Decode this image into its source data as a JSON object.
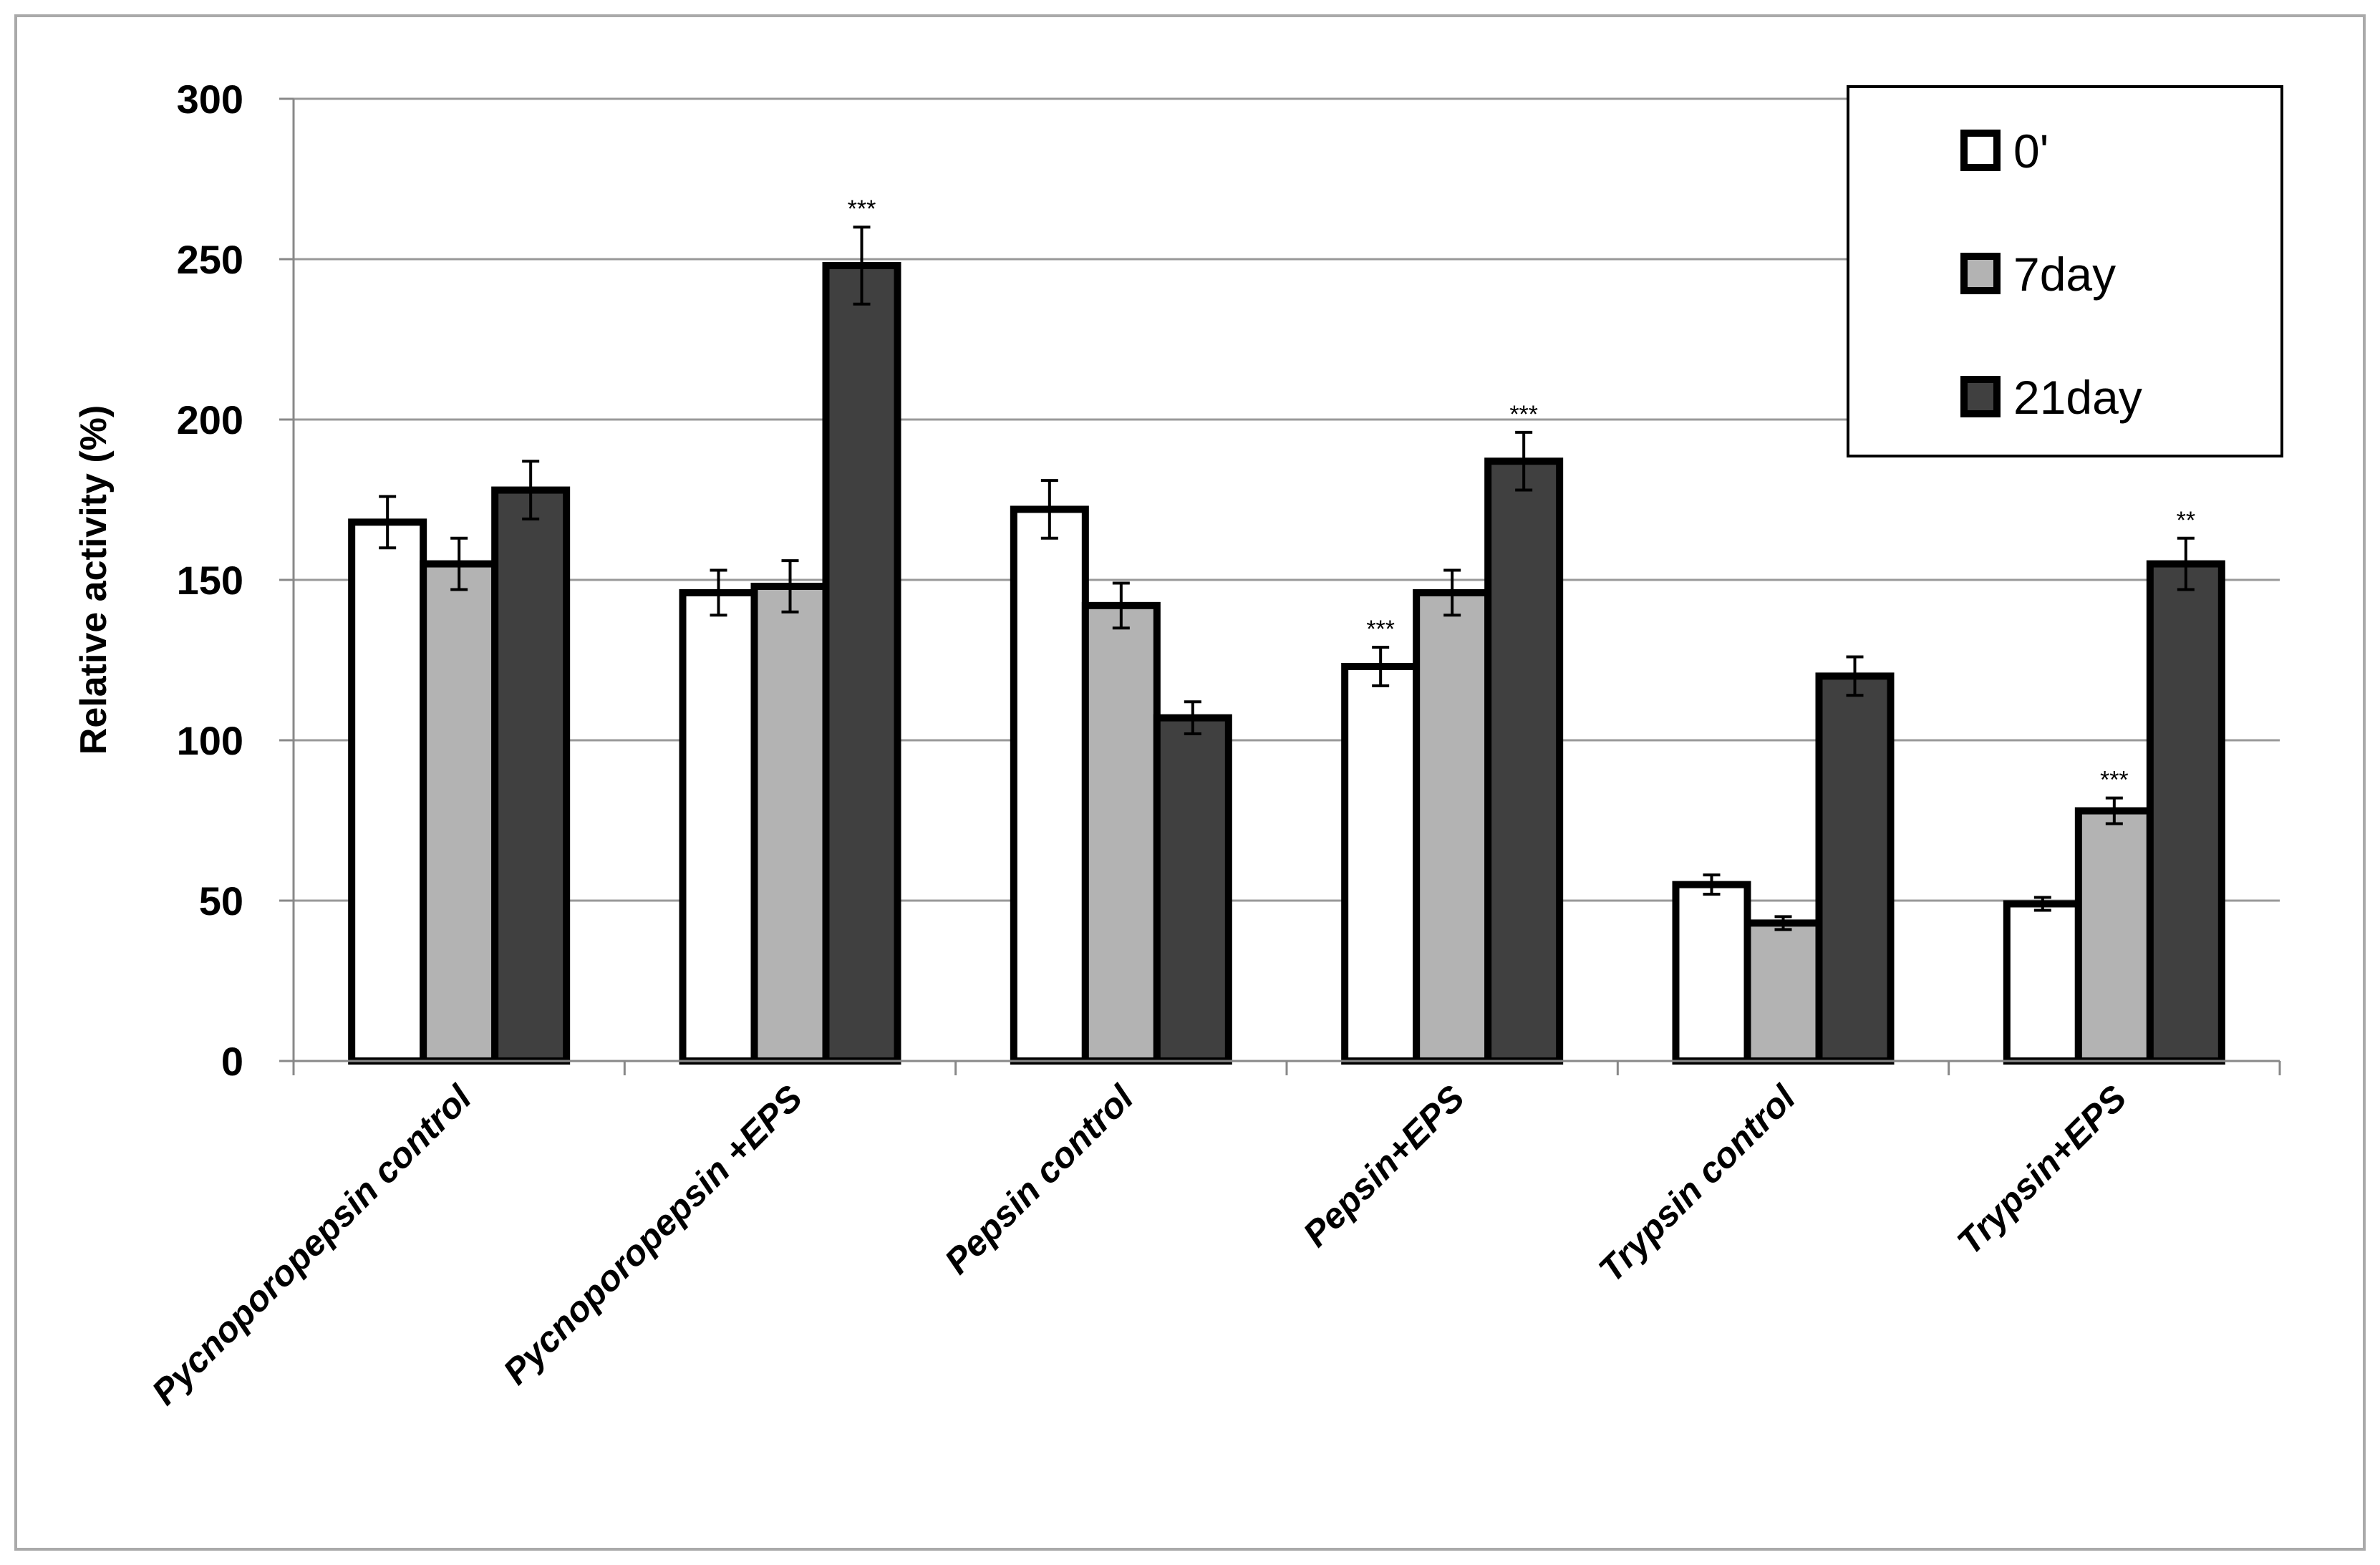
{
  "chart_data": {
    "type": "bar",
    "title": "",
    "xlabel": "",
    "ylabel": "Relative activity (%)",
    "ylim": [
      0,
      300
    ],
    "yticks": [
      0,
      50,
      100,
      150,
      200,
      250,
      300
    ],
    "grid": "horizontal",
    "legend_position": "top-right",
    "categories": [
      "Pycnoporopepsin control",
      "Pycnoporopepsin +EPS",
      "Pepsin control",
      "Pepsin+EPS",
      "Trypsin control",
      "Trypsin+EPS"
    ],
    "series": [
      {
        "name": "0'",
        "color": "#ffffff",
        "values": [
          168,
          146,
          172,
          123,
          55,
          49
        ],
        "errors": [
          8,
          7,
          9,
          6,
          3,
          2
        ],
        "significance": [
          "",
          "",
          "",
          "***",
          "",
          ""
        ]
      },
      {
        "name": "7day",
        "color": "#b3b3b3",
        "values": [
          155,
          148,
          142,
          146,
          43,
          78
        ],
        "errors": [
          8,
          8,
          7,
          7,
          2,
          4
        ],
        "significance": [
          "",
          "",
          "",
          "",
          "",
          "***"
        ]
      },
      {
        "name": "21day",
        "color": "#404040",
        "values": [
          178,
          248,
          107,
          187,
          120,
          155
        ],
        "errors": [
          9,
          12,
          5,
          9,
          6,
          8
        ],
        "significance": [
          "",
          "***",
          "",
          "***",
          "",
          "**"
        ]
      }
    ]
  }
}
